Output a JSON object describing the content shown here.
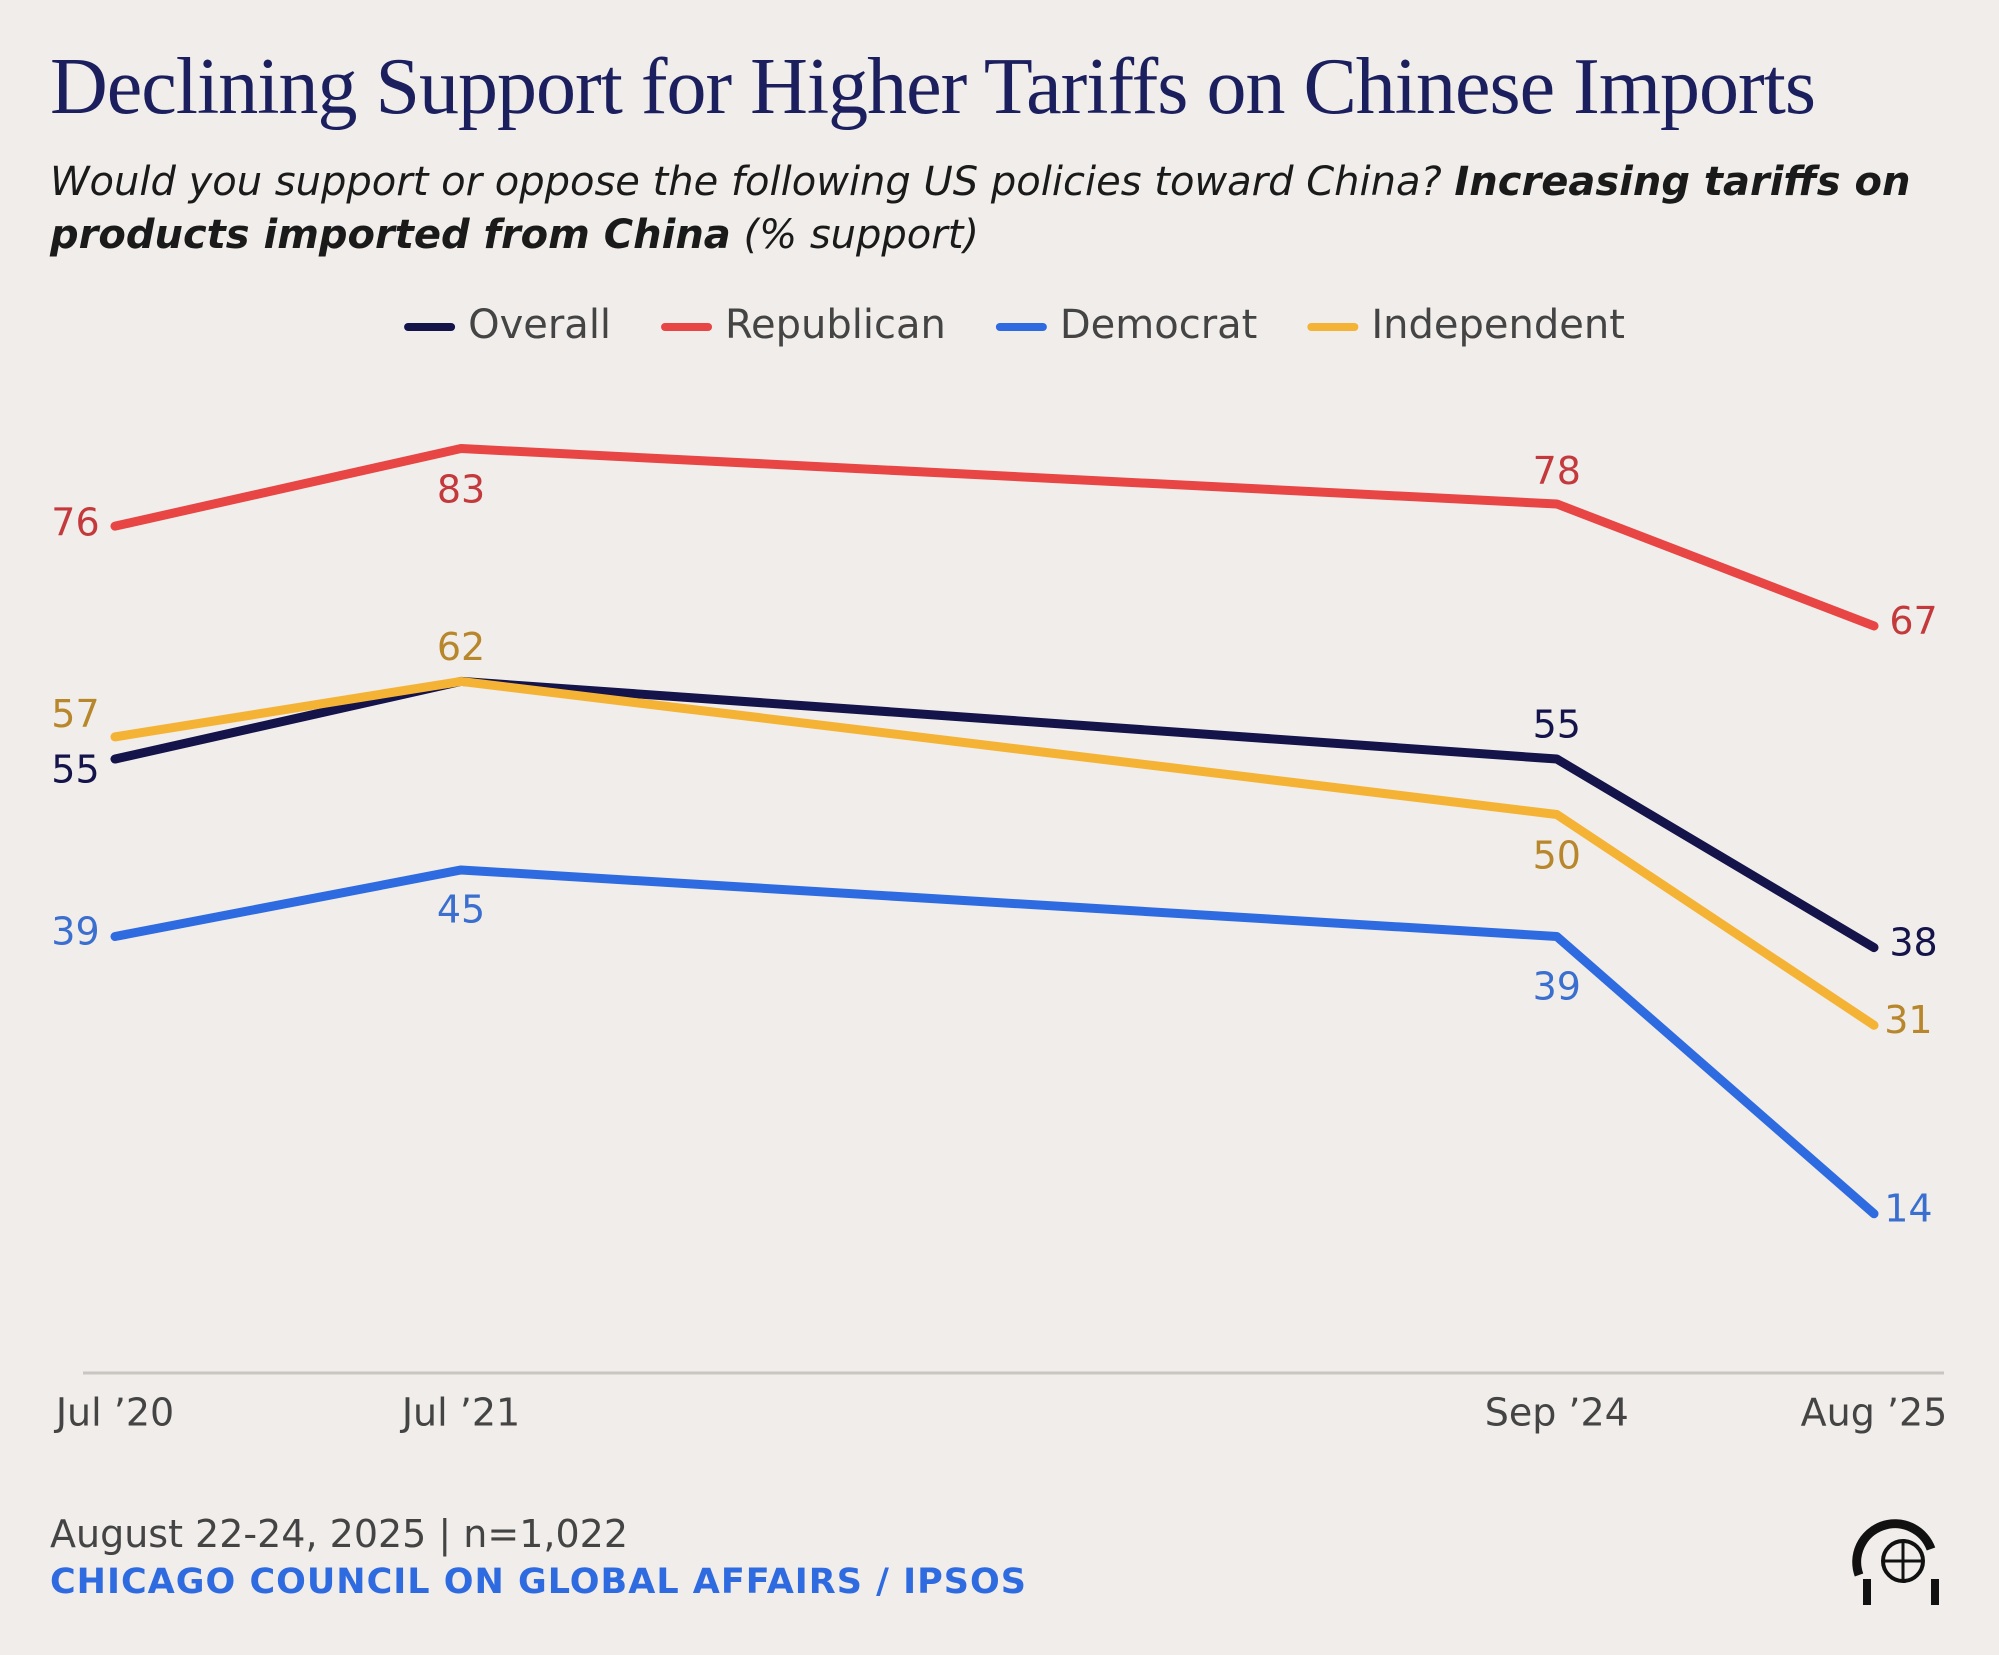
{
  "chart_data": {
    "type": "line",
    "title": "Declining Support for Higher Tariffs on Chinese Imports",
    "subtitle_question": "Would you support or oppose the following US policies toward China?",
    "subtitle_item": "Increasing tariffs on products imported from China",
    "subtitle_unit": "(% support)",
    "x": [
      "2020-07",
      "2021-07",
      "2024-09",
      "2025-08"
    ],
    "xlim": [
      "2020-07",
      "2025-08"
    ],
    "xticks": [
      {
        "value": "2020-07",
        "label": "Jul ’20"
      },
      {
        "value": "2021-07",
        "label": "Jul ’21"
      },
      {
        "value": "2024-09",
        "label": "Sep ’24"
      },
      {
        "value": "2025-08",
        "label": "Aug ’25"
      }
    ],
    "ylim": [
      0,
      100
    ],
    "legend": "top",
    "series": [
      {
        "name": "Overall",
        "color": "#14134a",
        "values": [
          55,
          62,
          55,
          38
        ]
      },
      {
        "name": "Republican",
        "color": "#e84545",
        "values": [
          76,
          83,
          78,
          67
        ]
      },
      {
        "name": "Democrat",
        "color": "#2f6be0",
        "values": [
          39,
          45,
          39,
          14
        ]
      },
      {
        "name": "Independent",
        "color": "#f5b335",
        "values": [
          57,
          62,
          50,
          31
        ]
      }
    ],
    "footer_date": "August 22-24, 2025 | n=1,022",
    "footer_source": "CHICAGO COUNCIL ON GLOBAL AFFAIRS / IPSOS"
  }
}
